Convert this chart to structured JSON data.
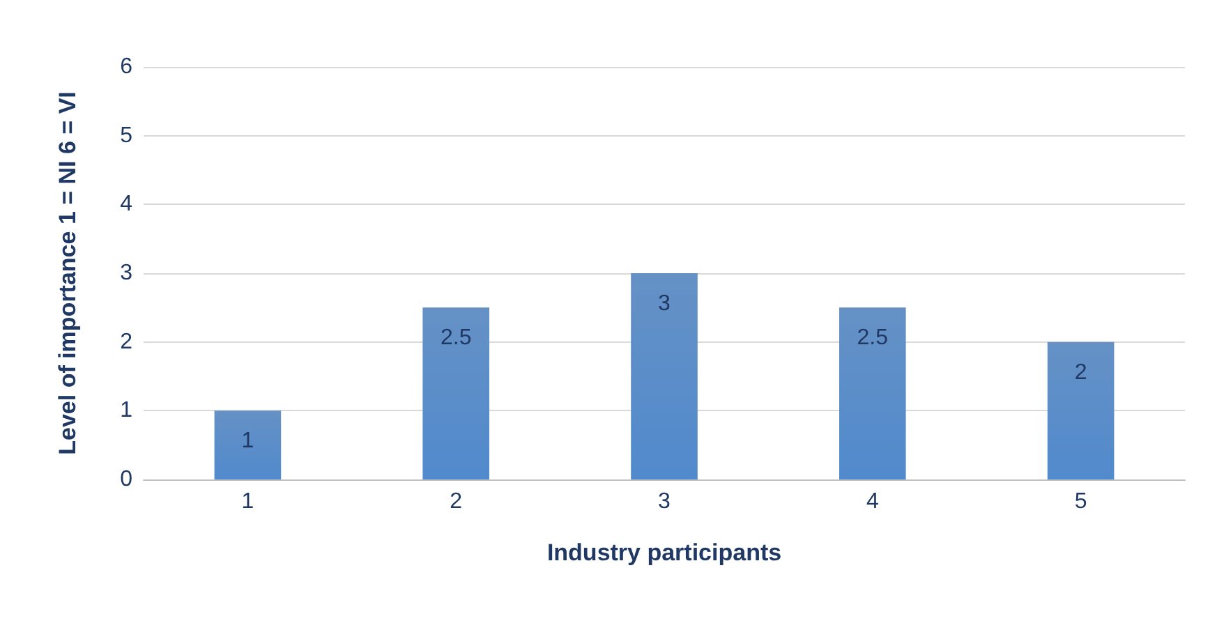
{
  "chart_data": {
    "type": "bar",
    "xlabel": "Industry participants",
    "ylabel": "Level of importance 1 = NI 6 = VI",
    "categories": [
      "1",
      "2",
      "3",
      "4",
      "5"
    ],
    "values": [
      1,
      2.5,
      3,
      2.5,
      2
    ],
    "color": "#4a7ebb",
    "ylim": [
      0,
      6
    ],
    "yticks": [
      0,
      1,
      2,
      3,
      4,
      5,
      6
    ],
    "grid": "y",
    "data_labels": true
  }
}
